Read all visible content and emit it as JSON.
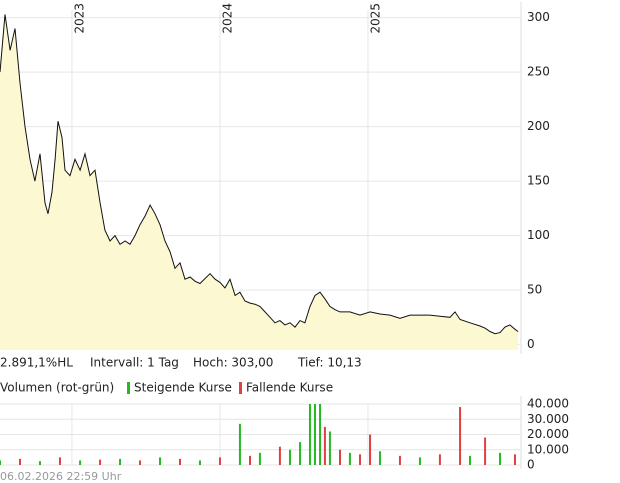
{
  "chart_data": [
    {
      "type": "area",
      "x": [
        2022.514,
        2022.548,
        2022.582,
        2022.615,
        2022.649,
        2022.683,
        2022.717,
        2022.75,
        2022.784,
        2022.818,
        2022.838,
        2022.865,
        2022.886,
        2022.906,
        2022.933,
        2022.953,
        2022.987,
        2023.021,
        2023.055,
        2023.088,
        2023.122,
        2023.156,
        2023.19,
        2023.223,
        2023.257,
        2023.291,
        2023.325,
        2023.359,
        2023.392,
        2023.426,
        2023.46,
        2023.494,
        2023.528,
        2023.561,
        2023.595,
        2023.629,
        2023.663,
        2023.696,
        2023.73,
        2023.764,
        2023.798,
        2023.832,
        2023.865,
        2023.933,
        2023.967,
        2024.0,
        2024.034,
        2024.068,
        2024.102,
        2024.135,
        2024.169,
        2024.203,
        2024.237,
        2024.27,
        2024.304,
        2024.338,
        2024.372,
        2024.405,
        2024.439,
        2024.473,
        2024.507,
        2024.541,
        2024.574,
        2024.608,
        2024.642,
        2024.676,
        2024.709,
        2024.743,
        2024.777,
        2024.811,
        2024.878,
        2024.946,
        2025.014,
        2025.081,
        2025.149,
        2025.216,
        2025.284,
        2025.351,
        2025.419,
        2025.486,
        2025.554,
        2025.588,
        2025.622,
        2025.689,
        2025.757,
        2025.791,
        2025.824,
        2025.858,
        2025.892,
        2025.926,
        2025.959,
        2025.993,
        2026.014
      ],
      "series": [
        {
          "color": "#111111",
          "fill": "#fbf8d2",
          "values": [
            250,
            303,
            270,
            290,
            240,
            200,
            170,
            150,
            175,
            130,
            120,
            140,
            170,
            205,
            190,
            160,
            155,
            170,
            160,
            175,
            155,
            160,
            130,
            105,
            95,
            100,
            92,
            95,
            92,
            100,
            110,
            118,
            128,
            120,
            110,
            95,
            85,
            70,
            75,
            60,
            62,
            58,
            56,
            65,
            60,
            57,
            52,
            60,
            45,
            48,
            40,
            38,
            37,
            35,
            30,
            25,
            20,
            22,
            18,
            20,
            16,
            22,
            20,
            35,
            45,
            48,
            42,
            35,
            32,
            30,
            30,
            27,
            30,
            28,
            27,
            24,
            27,
            27,
            27,
            26,
            25,
            30,
            23,
            20,
            17,
            15,
            12,
            10,
            11,
            16,
            18,
            14,
            12
          ]
        }
      ],
      "xlim": [
        2022.514,
        2026.027
      ],
      "xticks": [
        2023,
        2024,
        2025
      ],
      "ylim": [
        -5,
        307
      ],
      "yticks": [
        0,
        50,
        100,
        150,
        200,
        250,
        300
      ],
      "grid": true,
      "info": [
        "2.891,1%HL",
        "Intervall: 1 Tag",
        "Hoch:  303,00",
        "Tief:  10,13"
      ]
    },
    {
      "type": "bar",
      "title": "Volumen (rot-grün)",
      "x": [
        2022.514,
        2022.649,
        2022.784,
        2022.919,
        2023.055,
        2023.19,
        2023.325,
        2023.46,
        2023.595,
        2023.73,
        2023.865,
        2024.0,
        2024.135,
        2024.203,
        2024.27,
        2024.405,
        2024.473,
        2024.541,
        2024.608,
        2024.642,
        2024.676,
        2024.709,
        2024.743,
        2024.811,
        2024.878,
        2024.946,
        2025.014,
        2025.081,
        2025.216,
        2025.351,
        2025.486,
        2025.622,
        2025.689,
        2025.791,
        2025.892,
        2025.993
      ],
      "series": [
        {
          "name": "Steigende Kurse",
          "color": "#22bb22",
          "values": [
            3000,
            null,
            2500,
            null,
            3000,
            null,
            4000,
            null,
            5000,
            null,
            3000,
            null,
            27000,
            null,
            8000,
            null,
            10000,
            15000,
            40000,
            40000,
            40000,
            null,
            22000,
            null,
            8000,
            null,
            null,
            9000,
            null,
            5000,
            null,
            null,
            6000,
            null,
            8000,
            null
          ]
        },
        {
          "name": "Fallende Kurse",
          "color": "#e04040",
          "values": [
            null,
            4000,
            null,
            5000,
            null,
            3500,
            null,
            3000,
            null,
            4000,
            null,
            5000,
            null,
            6000,
            null,
            12000,
            null,
            null,
            null,
            null,
            null,
            25000,
            null,
            10000,
            null,
            7000,
            20000,
            null,
            6000,
            null,
            7000,
            38000,
            null,
            18000,
            null,
            7000
          ]
        }
      ],
      "xlim": [
        2022.514,
        2026.027
      ],
      "ylim": [
        0,
        40000
      ],
      "yticks": [
        0,
        {
          "value": 10000,
          "label": "10.000"
        },
        {
          "value": 20000,
          "label": "20.000"
        },
        {
          "value": 30000,
          "label": "30.000"
        },
        {
          "value": 40000,
          "label": "40.000"
        }
      ],
      "grid": true
    }
  ],
  "footer": "06.02.2026 22:59 Uhr"
}
